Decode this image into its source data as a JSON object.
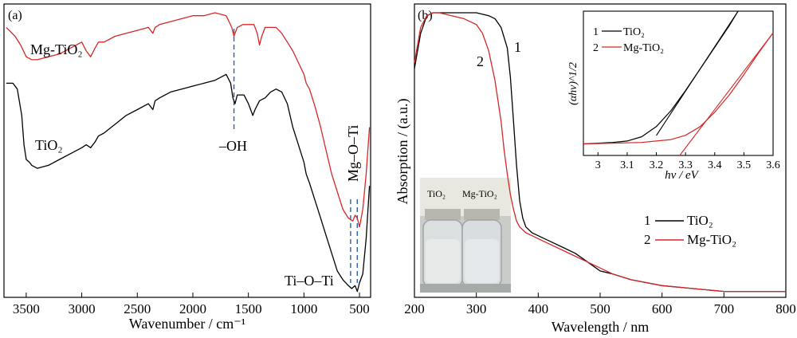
{
  "chart_data": [
    {
      "panel": "(a)",
      "type": "line",
      "xlabel": "Wavenumber / cm⁻¹",
      "ylabel": "",
      "xlim": [
        3700,
        400
      ],
      "ylim": [
        0,
        1.0
      ],
      "x_reversed": true,
      "xticks": [
        3500,
        3000,
        2500,
        2000,
        1500,
        1000,
        500
      ],
      "grid": false,
      "y_ticks_labeled": false,
      "series": [
        {
          "name": "Mg-TiO₂",
          "color": "#d62728",
          "x": [
            3680,
            3600,
            3550,
            3500,
            3450,
            3400,
            3300,
            3200,
            3100,
            3000,
            2960,
            2920,
            2880,
            2850,
            2800,
            2700,
            2600,
            2500,
            2400,
            2360,
            2340,
            2300,
            2200,
            2100,
            2000,
            1900,
            1800,
            1700,
            1650,
            1630,
            1600,
            1550,
            1500,
            1450,
            1420,
            1400,
            1380,
            1350,
            1300,
            1250,
            1200,
            1150,
            1100,
            1050,
            1000,
            980,
            950,
            900,
            850,
            800,
            750,
            700,
            650,
            600,
            560,
            540,
            520,
            500,
            470,
            440,
            410
          ],
          "y": [
            0.92,
            0.89,
            0.86,
            0.82,
            0.81,
            0.81,
            0.82,
            0.83,
            0.85,
            0.87,
            0.84,
            0.82,
            0.85,
            0.87,
            0.87,
            0.89,
            0.9,
            0.91,
            0.92,
            0.9,
            0.92,
            0.93,
            0.94,
            0.95,
            0.96,
            0.96,
            0.97,
            0.96,
            0.92,
            0.89,
            0.92,
            0.93,
            0.93,
            0.93,
            0.9,
            0.86,
            0.89,
            0.92,
            0.92,
            0.92,
            0.9,
            0.87,
            0.84,
            0.8,
            0.76,
            0.73,
            0.71,
            0.65,
            0.58,
            0.5,
            0.42,
            0.36,
            0.3,
            0.27,
            0.26,
            0.28,
            0.27,
            0.24,
            0.3,
            0.42,
            0.58
          ]
        },
        {
          "name": "TiO₂",
          "color": "#000000",
          "x": [
            3680,
            3620,
            3580,
            3540,
            3520,
            3500,
            3470,
            3450,
            3400,
            3300,
            3200,
            3100,
            3000,
            2960,
            2920,
            2880,
            2850,
            2800,
            2700,
            2600,
            2500,
            2400,
            2360,
            2340,
            2300,
            2200,
            2100,
            2000,
            1900,
            1800,
            1700,
            1660,
            1640,
            1620,
            1600,
            1560,
            1540,
            1500,
            1460,
            1440,
            1400,
            1350,
            1300,
            1250,
            1200,
            1150,
            1100,
            1050,
            1000,
            980,
            950,
            900,
            850,
            800,
            750,
            700,
            650,
            600,
            570,
            540,
            520,
            500,
            470,
            440,
            410
          ],
          "y": [
            0.73,
            0.73,
            0.71,
            0.62,
            0.52,
            0.47,
            0.46,
            0.45,
            0.44,
            0.45,
            0.47,
            0.49,
            0.51,
            0.52,
            0.51,
            0.53,
            0.55,
            0.56,
            0.59,
            0.62,
            0.64,
            0.66,
            0.64,
            0.67,
            0.68,
            0.7,
            0.71,
            0.72,
            0.73,
            0.74,
            0.76,
            0.73,
            0.68,
            0.66,
            0.69,
            0.69,
            0.69,
            0.66,
            0.62,
            0.64,
            0.67,
            0.68,
            0.7,
            0.71,
            0.7,
            0.66,
            0.58,
            0.52,
            0.46,
            0.42,
            0.39,
            0.33,
            0.27,
            0.21,
            0.15,
            0.09,
            0.06,
            0.04,
            0.03,
            0.04,
            0.02,
            0.05,
            0.08,
            0.2,
            0.38
          ]
        }
      ],
      "annotations": {
        "oh": {
          "text": "–OH",
          "x": 1630
        },
        "mgoti": {
          "text": "Mg–O–Ti",
          "x": 520
        },
        "tioti": {
          "text": "Ti–O–Ti",
          "x": 580
        }
      },
      "marker_lines": [
        1630,
        580,
        520
      ]
    },
    {
      "panel": "(b)",
      "type": "line",
      "xlabel": "Wavelength / nm",
      "ylabel": "Absorption / (a.u.)",
      "xlim": [
        200,
        800
      ],
      "ylim": [
        0,
        1.0
      ],
      "xticks": [
        200,
        300,
        400,
        500,
        600,
        700,
        800
      ],
      "grid": false,
      "y_ticks_labeled": false,
      "legend": {
        "position": "right",
        "items": [
          {
            "num": "1",
            "name": "TiO₂",
            "color": "#000000"
          },
          {
            "num": "2",
            "name": "Mg-TiO₂",
            "color": "#d62728"
          }
        ]
      },
      "series": [
        {
          "name": "TiO₂",
          "number": "1",
          "color": "#000000",
          "x": [
            200,
            210,
            220,
            230,
            240,
            250,
            260,
            280,
            300,
            320,
            330,
            340,
            350,
            355,
            360,
            365,
            370,
            375,
            380,
            390,
            400,
            420,
            440,
            460,
            480,
            500,
            520,
            550,
            600,
            650,
            700,
            750,
            800
          ],
          "y": [
            0.78,
            0.9,
            0.96,
            0.97,
            0.97,
            0.97,
            0.97,
            0.97,
            0.97,
            0.96,
            0.95,
            0.92,
            0.85,
            0.75,
            0.6,
            0.45,
            0.33,
            0.27,
            0.24,
            0.22,
            0.21,
            0.19,
            0.17,
            0.15,
            0.12,
            0.09,
            0.08,
            0.06,
            0.04,
            0.03,
            0.02,
            0.02,
            0.02
          ]
        },
        {
          "name": "Mg-TiO₂",
          "number": "2",
          "color": "#d62728",
          "x": [
            200,
            210,
            220,
            230,
            240,
            260,
            280,
            300,
            310,
            320,
            330,
            340,
            345,
            350,
            355,
            360,
            365,
            370,
            380,
            390,
            400,
            420,
            440,
            460,
            480,
            500,
            520,
            550,
            600,
            650,
            700,
            750,
            800
          ],
          "y": [
            0.8,
            0.92,
            0.96,
            0.97,
            0.97,
            0.96,
            0.95,
            0.93,
            0.9,
            0.84,
            0.74,
            0.6,
            0.5,
            0.42,
            0.35,
            0.3,
            0.26,
            0.24,
            0.22,
            0.21,
            0.2,
            0.18,
            0.16,
            0.14,
            0.12,
            0.1,
            0.08,
            0.06,
            0.04,
            0.03,
            0.02,
            0.02,
            0.02
          ]
        }
      ],
      "curve_labels": [
        {
          "text": "1",
          "x": 340,
          "series": "TiO₂"
        },
        {
          "text": "2",
          "x": 310,
          "series": "Mg-TiO₂"
        }
      ],
      "photo_labels": [
        "TiO₂",
        "Mg-TiO₂"
      ],
      "inset": {
        "type": "line",
        "xlabel": "hv / eV",
        "ylabel": "(αhv)^1/2",
        "xlim": [
          2.95,
          3.6
        ],
        "ylim": [
          0,
          1.0
        ],
        "xticks": [
          3.0,
          3.1,
          3.2,
          3.3,
          3.4,
          3.5,
          3.6
        ],
        "legend": [
          {
            "num": "1",
            "name": "TiO₂",
            "color": "#000000"
          },
          {
            "num": "2",
            "name": "Mg-TiO₂",
            "color": "#d62728"
          }
        ],
        "series": [
          {
            "name": "TiO₂",
            "color": "#000000",
            "x": [
              2.95,
              3.0,
              3.05,
              3.1,
              3.15,
              3.2,
              3.25,
              3.3,
              3.35,
              3.4,
              3.45,
              3.48
            ],
            "y": [
              0.08,
              0.085,
              0.09,
              0.1,
              0.13,
              0.2,
              0.31,
              0.45,
              0.6,
              0.75,
              0.9,
              1.0
            ]
          },
          {
            "name": "Mg-TiO₂",
            "color": "#d62728",
            "x": [
              2.95,
              3.05,
              3.15,
              3.2,
              3.25,
              3.3,
              3.35,
              3.4,
              3.45,
              3.5,
              3.55,
              3.6
            ],
            "y": [
              0.08,
              0.085,
              0.09,
              0.1,
              0.11,
              0.14,
              0.2,
              0.3,
              0.42,
              0.56,
              0.71,
              0.85
            ]
          }
        ],
        "tangents": [
          {
            "series": "TiO₂",
            "x0": 3.2,
            "x1": 3.48
          },
          {
            "series": "Mg-TiO₂",
            "x0": 3.28,
            "x1": 3.6
          }
        ]
      }
    }
  ]
}
